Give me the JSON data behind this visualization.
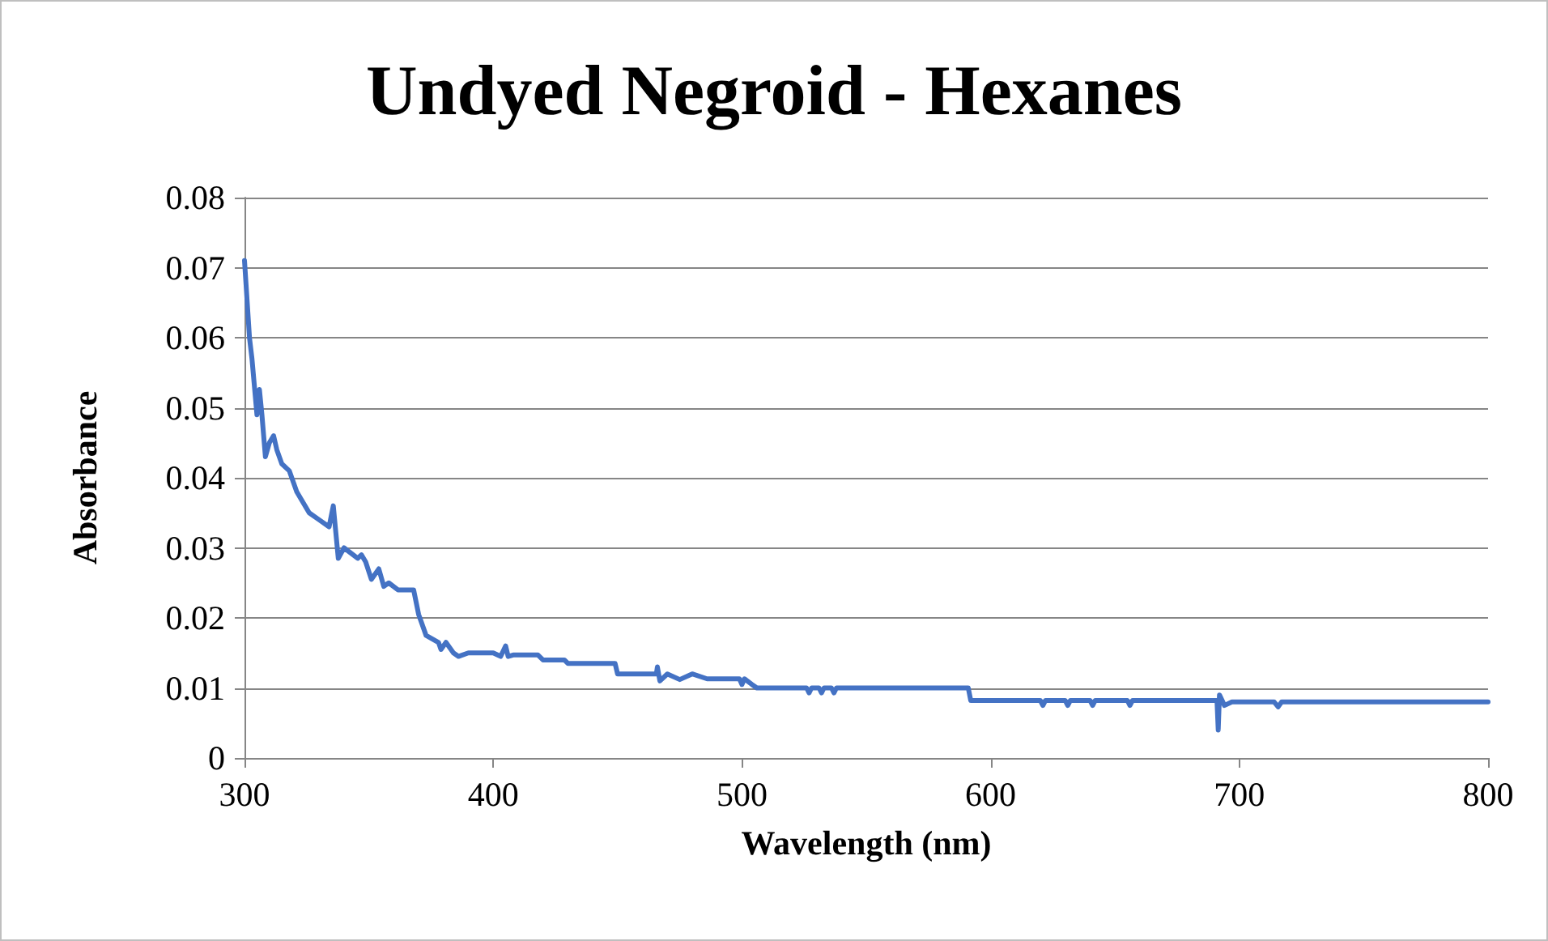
{
  "chart_data": {
    "type": "line",
    "title": "Undyed Negroid - Hexanes",
    "xlabel": "Wavelength (nm)",
    "ylabel": "Absorbance",
    "xlim": [
      300,
      800
    ],
    "xticks": [
      300,
      400,
      500,
      600,
      700,
      800
    ],
    "ylim": [
      0,
      0.08
    ],
    "yticks": [
      0,
      0.01,
      0.02,
      0.03,
      0.04,
      0.05,
      0.06,
      0.07,
      0.08
    ],
    "grid": "y",
    "marker": "none",
    "line_style": "solid",
    "series": [
      {
        "color": "#4472c4",
        "x": [
          300,
          302,
          303,
          305,
          306,
          307,
          308.4,
          310,
          311.7,
          313,
          315,
          318,
          321,
          326,
          330,
          334,
          335.7,
          337.7,
          340,
          345.5,
          347,
          348.7,
          351,
          354,
          356,
          358,
          361.7,
          368,
          370,
          373,
          378,
          379,
          381,
          384,
          386,
          390,
          400,
          403,
          405,
          406,
          408,
          418,
          420,
          428.6,
          430,
          449,
          450,
          465.6,
          466,
          467,
          470,
          475,
          480,
          486,
          490,
          499,
          500,
          501,
          504,
          506,
          526,
          527,
          528,
          531,
          532,
          533,
          536,
          537,
          538,
          591,
          592,
          620,
          621,
          622,
          630,
          631,
          632,
          640,
          641,
          642,
          655,
          656,
          657,
          690,
          691,
          691.5,
          692,
          694,
          697,
          700,
          714,
          715.6,
          717,
          800
        ],
        "values": [
          0.071,
          0.06,
          0.057,
          0.049,
          0.0526,
          0.049,
          0.043,
          0.045,
          0.046,
          0.044,
          0.042,
          0.041,
          0.038,
          0.035,
          0.034,
          0.033,
          0.036,
          0.0285,
          0.03,
          0.0285,
          0.029,
          0.028,
          0.0255,
          0.027,
          0.0245,
          0.025,
          0.024,
          0.024,
          0.0205,
          0.0175,
          0.0165,
          0.0155,
          0.0165,
          0.015,
          0.0145,
          0.015,
          0.015,
          0.0145,
          0.016,
          0.0145,
          0.0147,
          0.0147,
          0.014,
          0.014,
          0.0135,
          0.0135,
          0.012,
          0.012,
          0.013,
          0.011,
          0.012,
          0.0112,
          0.012,
          0.0113,
          0.0113,
          0.0113,
          0.0105,
          0.0113,
          0.0105,
          0.01,
          0.01,
          0.0093,
          0.01,
          0.01,
          0.0093,
          0.01,
          0.01,
          0.0093,
          0.01,
          0.01,
          0.0082,
          0.0082,
          0.0075,
          0.0082,
          0.0082,
          0.0075,
          0.0082,
          0.0082,
          0.0075,
          0.0082,
          0.0082,
          0.0075,
          0.0082,
          0.0082,
          0.0082,
          0.004,
          0.009,
          0.0075,
          0.008,
          0.008,
          0.008,
          0.0073,
          0.008,
          0.008
        ]
      }
    ]
  }
}
